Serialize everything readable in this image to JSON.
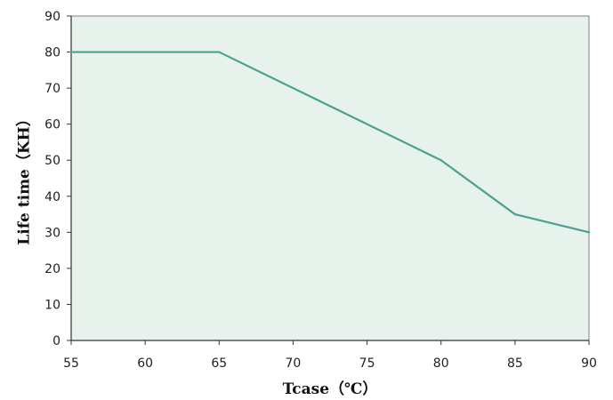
{
  "chart_data": {
    "type": "line",
    "title": "",
    "xlabel": "Tcase（℃）",
    "ylabel": "Life time（KH）",
    "xlim": [
      55,
      90
    ],
    "ylim": [
      0,
      90
    ],
    "xticks": [
      55,
      60,
      65,
      70,
      75,
      80,
      85,
      90
    ],
    "yticks": [
      0,
      10,
      20,
      30,
      40,
      50,
      60,
      70,
      80,
      90
    ],
    "grid": false,
    "legend": "none",
    "series": [
      {
        "x": [
          55,
          65,
          80,
          85,
          90
        ],
        "y": [
          80,
          80,
          50,
          35,
          30
        ]
      }
    ],
    "colors": {
      "plot_background": "#e8f2ec",
      "line": "#4aa390",
      "axis": "#333333"
    }
  }
}
